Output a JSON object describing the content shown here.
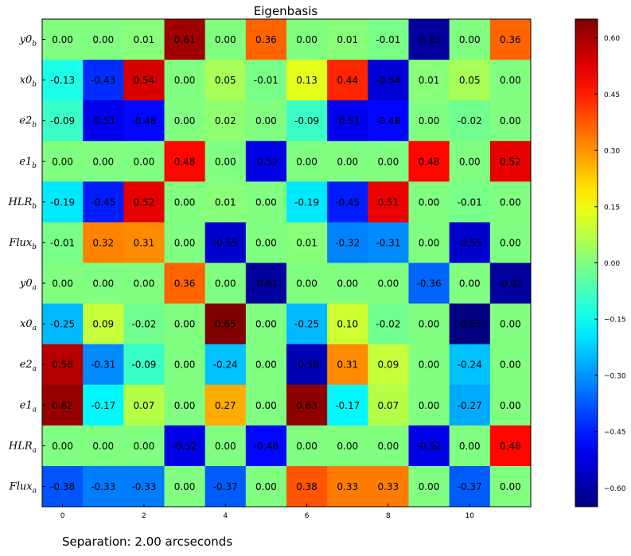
{
  "caption": "Separation: 2.00 arcseconds",
  "chart_data": {
    "type": "heatmap",
    "title": "Eigenbasis",
    "row_labels": [
      "y0_b",
      "x0_b",
      "e2_b",
      "e1_b",
      "HLR_b",
      "Flux_b",
      "y0_a",
      "x0_a",
      "e2_a",
      "e1_a",
      "HLR_a",
      "Flux_a"
    ],
    "x_tick_labels": [
      "0",
      "2",
      "4",
      "6",
      "8",
      "10"
    ],
    "x_tick_positions": [
      0,
      2,
      4,
      6,
      8,
      10
    ],
    "values": [
      [
        0.0,
        0.0,
        0.01,
        0.61,
        0.0,
        0.36,
        0.0,
        0.01,
        -0.01,
        -0.61,
        0.0,
        0.36
      ],
      [
        -0.13,
        -0.43,
        0.54,
        -0.0,
        0.05,
        -0.01,
        0.13,
        0.44,
        -0.54,
        0.01,
        0.05,
        -0.0
      ],
      [
        -0.09,
        -0.51,
        -0.48,
        0.0,
        0.02,
        0.0,
        -0.09,
        -0.51,
        -0.48,
        -0.0,
        -0.02,
        0.0
      ],
      [
        0.0,
        0.0,
        -0.0,
        0.48,
        0.0,
        -0.52,
        -0.0,
        -0.0,
        0.0,
        0.48,
        0.0,
        0.52
      ],
      [
        -0.19,
        -0.45,
        0.52,
        0.0,
        0.01,
        0.0,
        -0.19,
        -0.45,
        0.51,
        -0.0,
        -0.01,
        0.0
      ],
      [
        -0.01,
        0.32,
        0.31,
        -0.0,
        -0.55,
        -0.0,
        0.01,
        -0.32,
        -0.31,
        0.0,
        -0.55,
        -0.0
      ],
      [
        -0.0,
        0.0,
        -0.0,
        0.36,
        -0.0,
        -0.61,
        0.0,
        0.0,
        0.0,
        -0.36,
        -0.0,
        -0.61
      ],
      [
        -0.25,
        0.09,
        -0.02,
        -0.0,
        0.65,
        -0.0,
        -0.25,
        0.1,
        -0.02,
        -0.0,
        -0.65,
        0.0
      ],
      [
        0.58,
        -0.31,
        -0.09,
        0.0,
        -0.24,
        0.0,
        -0.58,
        0.31,
        0.09,
        -0.0,
        -0.24,
        0.0
      ],
      [
        0.62,
        -0.17,
        0.07,
        -0.0,
        0.27,
        -0.0,
        0.63,
        -0.17,
        0.07,
        -0.0,
        -0.27,
        0.0
      ],
      [
        0.0,
        0.0,
        -0.0,
        -0.52,
        -0.0,
        -0.48,
        -0.0,
        0.0,
        -0.0,
        -0.52,
        0.0,
        0.48
      ],
      [
        -0.38,
        -0.33,
        -0.33,
        0.0,
        -0.37,
        0.0,
        0.38,
        0.33,
        0.33,
        -0.0,
        -0.37,
        0.0
      ]
    ],
    "colormap": "jet",
    "vmin": -0.65,
    "vmax": 0.65,
    "colorbar_ticks": [
      0.6,
      0.45,
      0.3,
      0.15,
      0.0,
      -0.15,
      -0.3,
      -0.45,
      -0.6
    ],
    "colorbar_tick_labels": [
      "0.60",
      "0.45",
      "0.30",
      "0.15",
      "0.00",
      "−0.15",
      "−0.30",
      "−0.45",
      "−0.60"
    ]
  }
}
